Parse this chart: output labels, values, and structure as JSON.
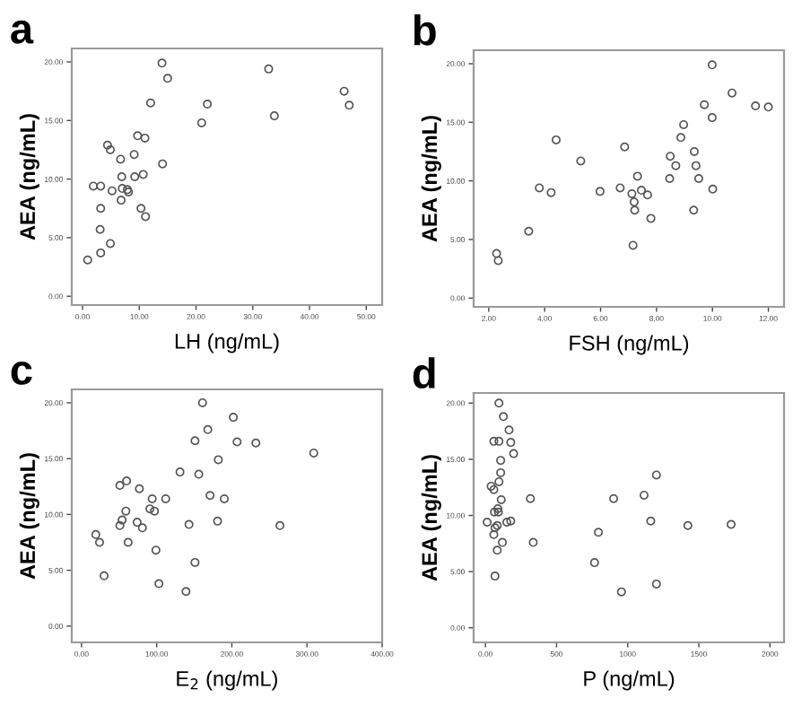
{
  "chart_data": [
    {
      "type": "scatter",
      "title": "a",
      "xlabel": "LH (ng/mL)",
      "ylabel": "AEA (ng/mL)",
      "marker": "circle",
      "grid": false,
      "xlim": [
        -1.9,
        52.8
      ],
      "ylim": [
        -0.75,
        21.15
      ],
      "xticks": [
        {
          "value": 0,
          "label": "0.00"
        },
        {
          "value": 10,
          "label": "10.00"
        },
        {
          "value": 20,
          "label": "20.00"
        },
        {
          "value": 30,
          "label": "30.00"
        },
        {
          "value": 40,
          "label": "40.00"
        },
        {
          "value": 50,
          "label": "50.00"
        }
      ],
      "yticks": [
        {
          "value": 0,
          "label": "0.00"
        },
        {
          "value": 5,
          "label": "5.00"
        },
        {
          "value": 10,
          "label": "10.00"
        },
        {
          "value": 15,
          "label": "15.00"
        },
        {
          "value": 20,
          "label": "20.00"
        }
      ],
      "series": [
        {
          "color": "#555555",
          "x": [
            14.0,
            15.0,
            12.0,
            22.0,
            21.0,
            32.8,
            33.8,
            46.1,
            47.0,
            4.4,
            4.9,
            9.7,
            11.0,
            6.7,
            9.1,
            14.1,
            1.9,
            3.2,
            6.9,
            9.2,
            10.7,
            5.2,
            7.0,
            7.9,
            8.1,
            6.8,
            3.2,
            10.3,
            11.1,
            3.1,
            4.9,
            3.2,
            0.9
          ],
          "values": [
            19.9,
            18.6,
            16.5,
            16.4,
            14.8,
            19.4,
            15.4,
            17.5,
            16.3,
            12.9,
            12.5,
            13.7,
            13.5,
            11.7,
            12.1,
            11.3,
            9.4,
            9.4,
            10.2,
            10.2,
            10.4,
            9.0,
            9.2,
            9.1,
            8.9,
            8.2,
            7.5,
            7.5,
            6.8,
            5.7,
            4.5,
            3.7,
            3.1
          ]
        }
      ]
    },
    {
      "type": "scatter",
      "title": "b",
      "xlabel": "FSH (ng/mL)",
      "ylabel": "AEA (ng/mL)",
      "marker": "circle",
      "grid": false,
      "xlim": [
        1.46,
        12.56
      ],
      "ylim": [
        -0.75,
        21.15
      ],
      "xticks": [
        {
          "value": 2,
          "label": "2.00"
        },
        {
          "value": 4,
          "label": "4.00"
        },
        {
          "value": 6,
          "label": "6.00"
        },
        {
          "value": 8,
          "label": "8.00"
        },
        {
          "value": 10,
          "label": "10.00"
        },
        {
          "value": 12,
          "label": "12.00"
        }
      ],
      "yticks": [
        {
          "value": 0,
          "label": "0.00"
        },
        {
          "value": 5,
          "label": "5.00"
        },
        {
          "value": 10,
          "label": "10.00"
        },
        {
          "value": 15,
          "label": "15.00"
        },
        {
          "value": 20,
          "label": "20.00"
        }
      ],
      "series": [
        {
          "color": "#555555",
          "x": [
            9.99,
            10.7,
            9.71,
            11.54,
            12.0,
            9.99,
            8.97,
            8.87,
            4.41,
            6.86,
            5.29,
            8.49,
            9.35,
            8.69,
            9.41,
            7.32,
            8.47,
            9.51,
            3.81,
            4.23,
            5.98,
            6.7,
            7.12,
            7.46,
            7.68,
            10.01,
            7.2,
            7.22,
            9.33,
            7.8,
            3.43,
            7.16,
            2.28,
            2.34
          ],
          "values": [
            19.9,
            17.5,
            16.5,
            16.4,
            16.3,
            15.4,
            14.8,
            13.7,
            13.5,
            12.9,
            11.7,
            12.1,
            12.5,
            11.3,
            11.3,
            10.4,
            10.2,
            10.2,
            9.4,
            9.0,
            9.1,
            9.4,
            8.9,
            9.2,
            8.8,
            9.3,
            8.2,
            7.5,
            7.5,
            6.8,
            5.7,
            4.5,
            3.8,
            3.2
          ]
        }
      ]
    },
    {
      "type": "scatter",
      "title": "c",
      "xlabel": "E$_{2}$ (ng/mL)",
      "ylabel": "AEA (ng/mL)",
      "marker": "circle",
      "grid": false,
      "xlim": [
        -13,
        400
      ],
      "ylim": [
        -1.46,
        21.2
      ],
      "xticks": [
        {
          "value": 0,
          "label": "0.00"
        },
        {
          "value": 100,
          "label": "100.00"
        },
        {
          "value": 200,
          "label": "200.00"
        },
        {
          "value": 300,
          "label": "300.00"
        },
        {
          "value": 400,
          "label": "400.00"
        }
      ],
      "yticks": [
        {
          "value": 0,
          "label": "0.00"
        },
        {
          "value": 5,
          "label": "5.00"
        },
        {
          "value": 10,
          "label": "10.00"
        },
        {
          "value": 15,
          "label": "15.00"
        },
        {
          "value": 20,
          "label": "20.00"
        }
      ],
      "series": [
        {
          "color": "#555555",
          "x": [
            161,
            202,
            168,
            151,
            207,
            232,
            309,
            182,
            131,
            156,
            60,
            51,
            77,
            171,
            190,
            94,
            112,
            59,
            91,
            97,
            54,
            51,
            74,
            81,
            143,
            181,
            264,
            19,
            24,
            62,
            99,
            151,
            30,
            103,
            139
          ],
          "values": [
            20.0,
            18.7,
            17.6,
            16.6,
            16.5,
            16.4,
            15.5,
            14.9,
            13.8,
            13.6,
            13.0,
            12.6,
            12.3,
            11.7,
            11.4,
            11.4,
            11.4,
            10.3,
            10.5,
            10.3,
            9.5,
            9.0,
            9.3,
            8.8,
            9.1,
            9.4,
            9.0,
            8.2,
            7.5,
            7.5,
            6.8,
            5.7,
            4.5,
            3.8,
            3.1
          ]
        }
      ]
    },
    {
      "type": "scatter",
      "title": "d",
      "xlabel": "P (ng/mL)",
      "ylabel": "AEA (ng/mL)",
      "marker": "circle",
      "grid": false,
      "xlim": [
        -83,
        2099
      ],
      "ylim": [
        -1.3,
        20.9
      ],
      "xticks": [
        {
          "value": 0,
          "label": "0.00"
        },
        {
          "value": 500,
          "label": "500"
        },
        {
          "value": 1000,
          "label": "1000"
        },
        {
          "value": 1500,
          "label": "1500"
        },
        {
          "value": 2000,
          "label": "2000"
        }
      ],
      "yticks": [
        {
          "value": 0,
          "label": "0.00"
        },
        {
          "value": 5,
          "label": "5.00"
        },
        {
          "value": 10,
          "label": "10.00"
        },
        {
          "value": 15,
          "label": "15.00"
        },
        {
          "value": 20,
          "label": "20.00"
        }
      ],
      "series": [
        {
          "color": "#555555",
          "x": [
            95,
            126,
            166,
            59,
            95,
            178,
            198,
            107,
            107,
            95,
            40,
            59,
            111,
            316,
            901,
            1115,
            1202,
            63,
            87,
            91,
            12,
            67,
            83,
            59,
            150,
            178,
            1162,
            1423,
            1727,
            794,
            119,
            336,
            83,
            767,
            67,
            1202,
            956
          ],
          "values": [
            20.0,
            18.8,
            17.6,
            16.6,
            16.6,
            16.5,
            15.5,
            14.9,
            13.8,
            13.0,
            12.6,
            12.3,
            11.4,
            11.5,
            11.5,
            11.8,
            13.6,
            10.3,
            10.6,
            10.3,
            9.4,
            8.9,
            9.1,
            8.3,
            9.4,
            9.5,
            9.5,
            9.1,
            9.2,
            8.5,
            7.6,
            7.6,
            6.9,
            5.8,
            4.6,
            3.9,
            3.2
          ]
        }
      ]
    }
  ]
}
